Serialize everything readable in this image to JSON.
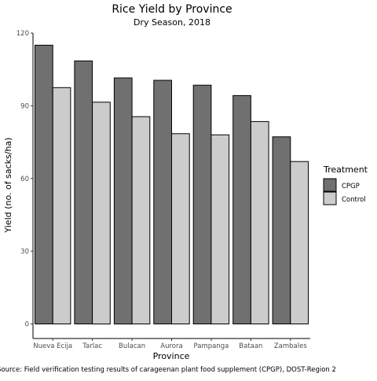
{
  "chart_data": {
    "type": "bar",
    "title": "Rice Yield by Province",
    "subtitle": "Dry Season, 2018",
    "xlabel": "Province",
    "ylabel": "Yield (no. of sacks/ha)",
    "ylim": [
      -6,
      120
    ],
    "yticks": [
      0,
      30,
      60,
      90,
      120
    ],
    "grid": false,
    "legend_position": "right",
    "legend_title": "Treatment",
    "categories": [
      "Nueva Ecija",
      "Tarlac",
      "Bulacan",
      "Aurora",
      "Pampanga",
      "Bataan",
      "Zambales"
    ],
    "series": [
      {
        "name": "CPGP",
        "color": "#707070",
        "values": [
          115,
          108.5,
          101.5,
          100.5,
          98.5,
          94.2,
          77.2
        ]
      },
      {
        "name": "Control",
        "color": "#cccccc",
        "values": [
          97.5,
          91.5,
          85.5,
          78.5,
          78,
          83.5,
          67
        ]
      }
    ],
    "caption": "Source: Field verification testing results of carageenan plant food supplement (CPGP), DOST-Region 2"
  }
}
